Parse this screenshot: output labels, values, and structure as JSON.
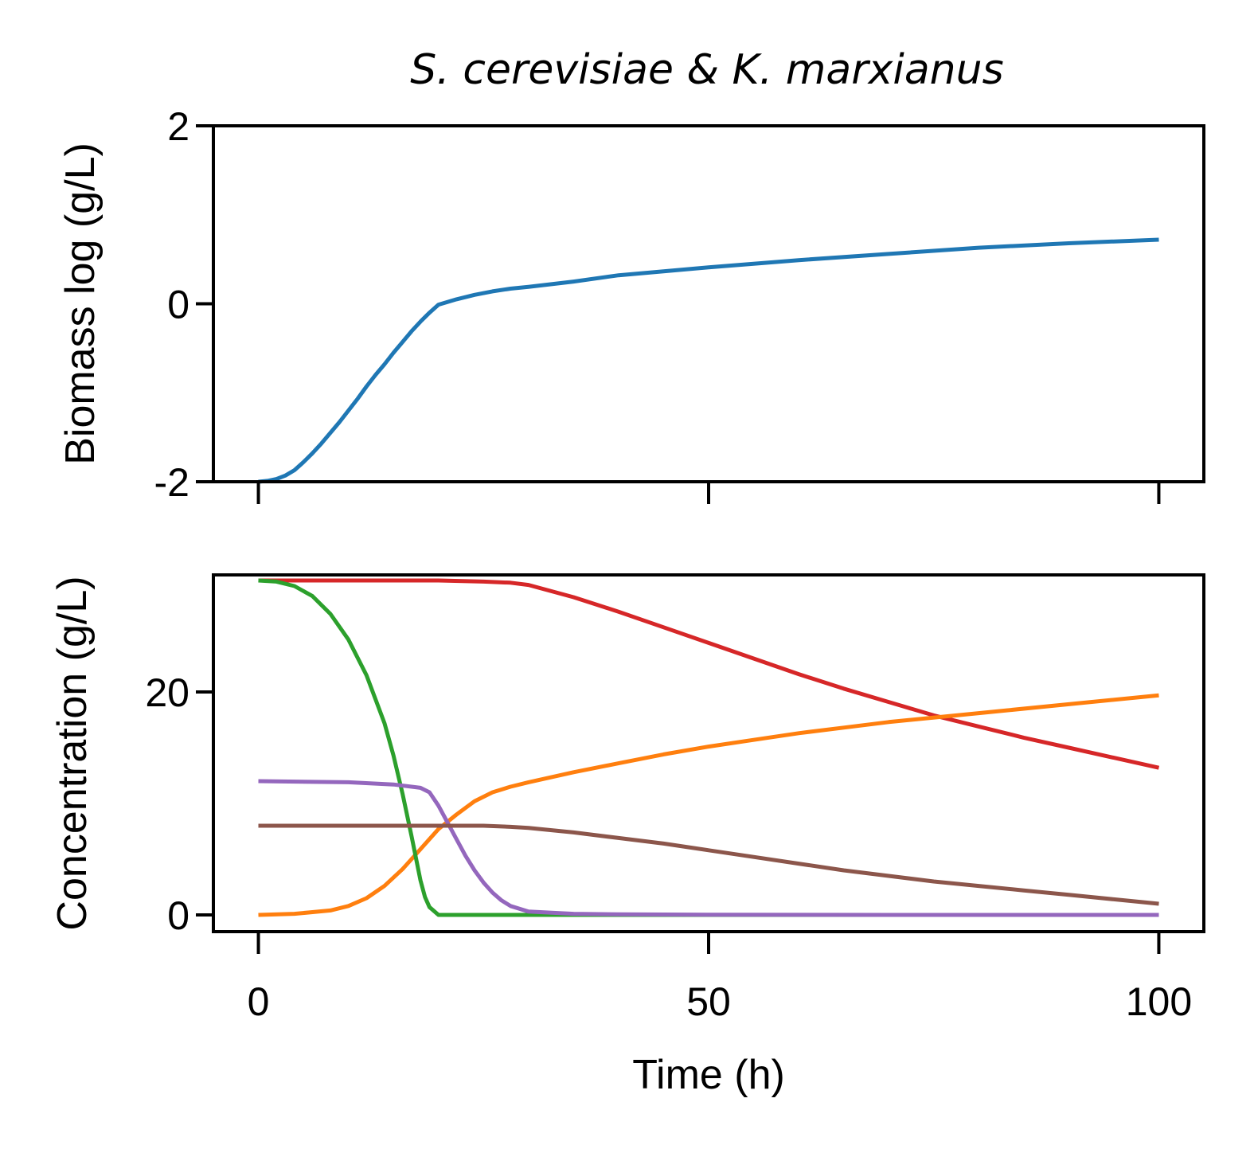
{
  "title": "S. cerevisiae & K. marxianus",
  "chart_data": [
    {
      "type": "line",
      "panel": "top",
      "ylabel": "Biomass log (g/L)",
      "xlim": [
        -5,
        105
      ],
      "ylim": [
        -2,
        2
      ],
      "yticks": [
        2,
        0,
        -2
      ],
      "ytick_labels": [
        "2",
        "0",
        "-2"
      ],
      "xticks": [
        0,
        50,
        100
      ],
      "grid": false,
      "series": [
        {
          "color": "#1f77b4",
          "x": [
            0,
            1,
            2,
            3,
            4,
            5,
            6,
            7,
            8,
            9,
            10,
            11,
            12,
            13,
            14,
            15,
            16,
            17,
            18,
            19,
            20,
            22,
            24,
            26,
            28,
            30,
            35,
            40,
            50,
            60,
            70,
            80,
            90,
            100
          ],
          "y": [
            -2.0,
            -1.99,
            -1.97,
            -1.93,
            -1.87,
            -1.78,
            -1.68,
            -1.57,
            -1.45,
            -1.33,
            -1.2,
            -1.07,
            -0.93,
            -0.8,
            -0.68,
            -0.55,
            -0.43,
            -0.31,
            -0.2,
            -0.1,
            -0.01,
            0.05,
            0.1,
            0.14,
            0.17,
            0.19,
            0.25,
            0.32,
            0.41,
            0.49,
            0.56,
            0.63,
            0.68,
            0.72
          ]
        }
      ]
    },
    {
      "type": "line",
      "panel": "bottom",
      "ylabel": "Concentration (g/L)",
      "xlabel": "Time (h)",
      "xlim": [
        -5,
        105
      ],
      "ylim": [
        -1.5,
        30.5
      ],
      "yticks": [
        20,
        0
      ],
      "ytick_labels": [
        "20",
        "0"
      ],
      "xticks": [
        0,
        50,
        100
      ],
      "xtick_labels": [
        "0",
        "50",
        "100"
      ],
      "grid": false,
      "series": [
        {
          "color": "#d62728",
          "x": [
            0,
            10,
            20,
            25,
            28,
            30,
            35,
            40,
            45,
            50,
            55,
            60,
            65,
            70,
            75,
            80,
            85,
            90,
            95,
            100
          ],
          "y": [
            30.0,
            30.0,
            30.0,
            29.9,
            29.8,
            29.6,
            28.5,
            27.2,
            25.8,
            24.4,
            23.0,
            21.6,
            20.3,
            19.1,
            17.9,
            16.9,
            15.9,
            15.0,
            14.1,
            13.2
          ]
        },
        {
          "color": "#ff7f0e",
          "x": [
            0,
            4,
            8,
            10,
            12,
            14,
            16,
            18,
            19,
            20,
            22,
            24,
            26,
            28,
            30,
            35,
            40,
            45,
            50,
            55,
            60,
            65,
            70,
            80,
            90,
            100
          ],
          "y": [
            0.0,
            0.1,
            0.4,
            0.8,
            1.5,
            2.6,
            4.1,
            5.9,
            6.8,
            7.7,
            9.0,
            10.2,
            11.0,
            11.5,
            11.9,
            12.8,
            13.6,
            14.4,
            15.1,
            15.7,
            16.3,
            16.8,
            17.3,
            18.1,
            18.9,
            19.7
          ]
        },
        {
          "color": "#2ca02c",
          "x": [
            0,
            2,
            4,
            6,
            8,
            10,
            12,
            14,
            15,
            16,
            17,
            18,
            18.5,
            19,
            20,
            25,
            30,
            50,
            100
          ],
          "y": [
            30.0,
            29.9,
            29.5,
            28.6,
            27.0,
            24.7,
            21.5,
            17.2,
            14.3,
            10.9,
            7.1,
            3.1,
            1.6,
            0.7,
            0.0,
            0.0,
            0.0,
            0.0,
            0.0
          ]
        },
        {
          "color": "#9467bd",
          "x": [
            0,
            10,
            15,
            18,
            19,
            20,
            21,
            22,
            23,
            24,
            25,
            26,
            27,
            28,
            30,
            35,
            40,
            50,
            70,
            100
          ],
          "y": [
            12.0,
            11.9,
            11.7,
            11.4,
            11.0,
            9.8,
            8.3,
            6.8,
            5.3,
            4.0,
            2.9,
            2.0,
            1.3,
            0.8,
            0.3,
            0.1,
            0.05,
            0.02,
            0.0,
            0.0
          ]
        },
        {
          "color": "#8c564b",
          "x": [
            0,
            10,
            20,
            25,
            28,
            30,
            35,
            40,
            45,
            50,
            55,
            60,
            65,
            70,
            75,
            80,
            85,
            90,
            95,
            100
          ],
          "y": [
            8.0,
            8.0,
            8.0,
            8.0,
            7.9,
            7.8,
            7.4,
            6.9,
            6.4,
            5.8,
            5.2,
            4.6,
            4.0,
            3.5,
            3.0,
            2.6,
            2.2,
            1.8,
            1.4,
            1.0
          ]
        }
      ]
    }
  ]
}
